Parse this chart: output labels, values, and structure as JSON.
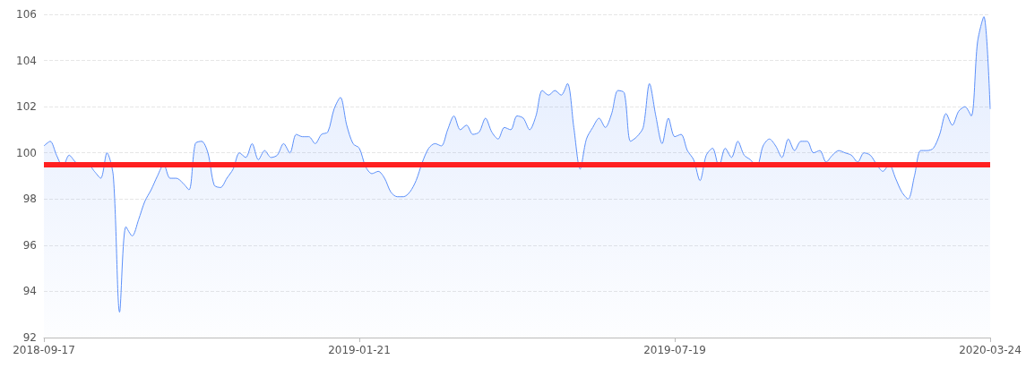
{
  "chart_data": {
    "type": "area",
    "categories": [
      "2018-09-17",
      null,
      null,
      null,
      null,
      null,
      null,
      null,
      null,
      null,
      null,
      null,
      null,
      null,
      null,
      null,
      null,
      null,
      null,
      null,
      null,
      null,
      null,
      null,
      null,
      null,
      null,
      null,
      null,
      null,
      null,
      null,
      null,
      null,
      null,
      null,
      null,
      null,
      null,
      null,
      null,
      null,
      null,
      null,
      null,
      null,
      null,
      null,
      null,
      null,
      "2019-01-21",
      null,
      null,
      null,
      null,
      null,
      null,
      null,
      null,
      null,
      null,
      null,
      null,
      null,
      null,
      null,
      null,
      null,
      null,
      null,
      null,
      null,
      null,
      null,
      null,
      null,
      null,
      null,
      null,
      null,
      null,
      null,
      null,
      null,
      null,
      null,
      null,
      null,
      null,
      null,
      null,
      null,
      null,
      null,
      null,
      null,
      null,
      null,
      null,
      null,
      "2019-07-19",
      null,
      null,
      null,
      null,
      null,
      null,
      null,
      null,
      null,
      null,
      null,
      null,
      null,
      null,
      null,
      null,
      null,
      null,
      null,
      null,
      null,
      null,
      null,
      null,
      null,
      null,
      null,
      null,
      null,
      null,
      null,
      null,
      null,
      null,
      null,
      null,
      null,
      null,
      null,
      null,
      null,
      null,
      null,
      null,
      null,
      null,
      null,
      null,
      null,
      "2020-03-24"
    ],
    "series": [
      {
        "color": "#5b8ff9",
        "values": [
          100.3,
          100.5,
          99.9,
          99.4,
          99.9,
          99.6,
          99.4,
          99.5,
          99.2,
          98.9,
          100.0,
          99.0,
          93.1,
          96.8,
          96.4,
          97.1,
          97.9,
          98.4,
          99.0,
          99.5,
          98.9,
          98.9,
          98.7,
          98.4,
          100.4,
          100.5,
          100.0,
          98.6,
          98.5,
          98.9,
          99.3,
          100.0,
          99.8,
          100.4,
          99.7,
          100.1,
          99.8,
          99.9,
          100.4,
          100.0,
          100.8,
          100.7,
          100.7,
          100.4,
          100.8,
          100.9,
          101.9,
          102.4,
          101.2,
          100.4,
          100.2,
          99.4,
          99.1,
          99.2,
          98.9,
          98.3,
          98.1,
          98.1,
          98.3,
          98.8,
          99.6,
          100.2,
          100.4,
          100.3,
          101.0,
          101.6,
          101.0,
          101.2,
          100.8,
          100.9,
          101.5,
          100.9,
          100.6,
          101.1,
          101.0,
          101.6,
          101.5,
          101.0,
          101.6,
          102.7,
          102.5,
          102.7,
          102.5,
          103.0,
          101.1,
          99.3,
          100.6,
          101.1,
          101.5,
          101.1,
          101.7,
          102.7,
          102.6,
          100.5,
          100.7,
          101.1,
          103.0,
          101.6,
          100.4,
          101.5,
          100.7,
          100.8,
          100.1,
          99.7,
          98.8,
          99.9,
          100.2,
          99.4,
          100.2,
          99.8,
          100.5,
          99.9,
          99.7,
          99.4,
          100.3,
          100.6,
          100.3,
          99.8,
          100.6,
          100.1,
          100.5,
          100.5,
          100.0,
          100.1,
          99.6,
          99.9,
          100.1,
          100.0,
          99.9,
          99.6,
          100.0,
          99.9,
          99.5,
          99.2,
          99.5,
          98.9,
          98.3,
          98.0,
          99.0,
          100.1,
          100.1,
          100.2,
          100.8,
          101.7,
          101.2,
          101.8,
          102.0,
          101.6,
          104.8,
          105.9,
          101.9
        ]
      }
    ],
    "ylim": [
      92,
      106
    ],
    "yticks": [
      92,
      94,
      96,
      98,
      100,
      102,
      104,
      106
    ],
    "grid": "y",
    "marker": "none",
    "ref_lines": [
      {
        "axis": "y",
        "value": 99.5,
        "color": "#ff2020"
      }
    ]
  }
}
